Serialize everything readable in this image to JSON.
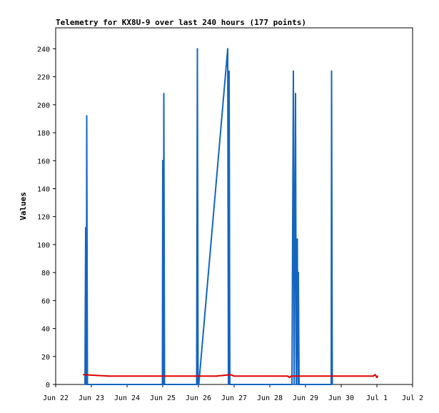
{
  "chart_data": {
    "type": "line",
    "title": "Telemetry for KX8U-9 over last 240 hours (177 points)",
    "xlabel": "",
    "ylabel": "Values",
    "x_ticks": [
      "Jun 22",
      "Jun 23",
      "Jun 24",
      "Jun 25",
      "Jun 26",
      "Jun 27",
      "Jun 28",
      "Jun 29",
      "Jun 30",
      "Jul 1",
      "Jul 2"
    ],
    "xlim": [
      0,
      10
    ],
    "ylim": [
      0,
      255
    ],
    "y_ticks": [
      0,
      20,
      40,
      60,
      80,
      100,
      120,
      140,
      160,
      180,
      200,
      220,
      240
    ],
    "grid": false,
    "legend": "none",
    "series": [
      {
        "color": "#1565c0",
        "points": [
          [
            0.82,
            0
          ],
          [
            0.84,
            112
          ],
          [
            0.86,
            0
          ],
          [
            0.87,
            192
          ],
          [
            0.89,
            0
          ],
          [
            2.99,
            0
          ],
          [
            3.0,
            160
          ],
          [
            3.02,
            0
          ],
          [
            3.03,
            208
          ],
          [
            3.05,
            0
          ],
          [
            3.95,
            0
          ],
          [
            3.97,
            240
          ],
          [
            3.99,
            0
          ],
          [
            4.01,
            0
          ],
          [
            4.82,
            240
          ],
          [
            4.84,
            0
          ],
          [
            4.86,
            224
          ],
          [
            4.88,
            0
          ],
          [
            6.62,
            0
          ],
          [
            6.64,
            112
          ],
          [
            6.66,
            224
          ],
          [
            6.68,
            0
          ],
          [
            6.72,
            208
          ],
          [
            6.74,
            0
          ],
          [
            6.77,
            104
          ],
          [
            6.79,
            0
          ],
          [
            6.8,
            80
          ],
          [
            6.82,
            0
          ],
          [
            7.72,
            0
          ],
          [
            7.73,
            224
          ],
          [
            7.75,
            0
          ]
        ]
      },
      {
        "color": "#e00000",
        "points": [
          [
            0.78,
            7
          ],
          [
            1.5,
            6
          ],
          [
            2.5,
            6
          ],
          [
            3.5,
            6
          ],
          [
            4.5,
            6
          ],
          [
            4.9,
            7
          ],
          [
            5.0,
            6
          ],
          [
            6.0,
            6
          ],
          [
            6.5,
            6
          ],
          [
            6.55,
            5
          ],
          [
            6.6,
            6
          ],
          [
            7.5,
            6
          ],
          [
            8.5,
            6
          ],
          [
            8.9,
            6
          ],
          [
            8.95,
            7
          ],
          [
            9.0,
            5
          ],
          [
            9.02,
            6
          ]
        ]
      }
    ]
  }
}
